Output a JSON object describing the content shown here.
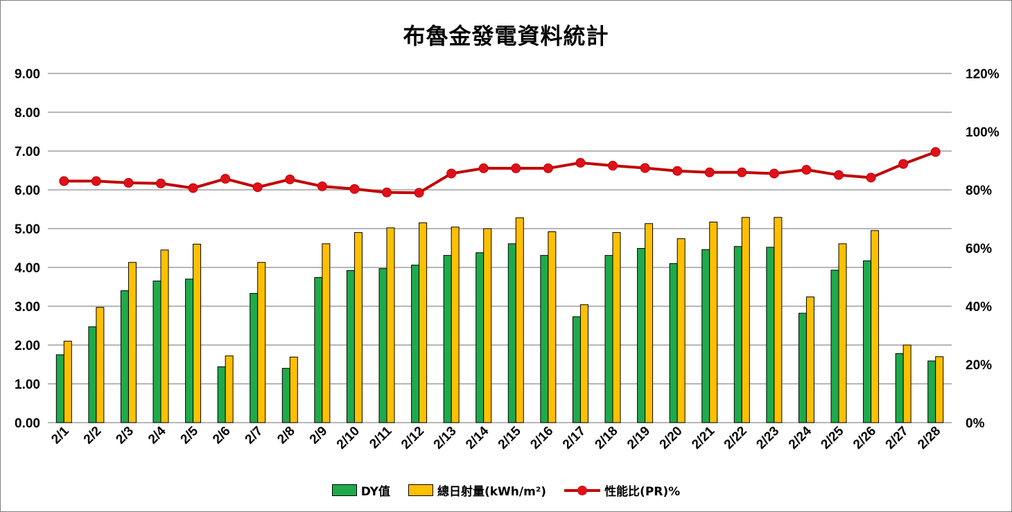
{
  "chart_data": {
    "type": "bar",
    "title": "布魯金發電資料統計",
    "categories": [
      "2/1",
      "2/2",
      "2/3",
      "2/4",
      "2/5",
      "2/6",
      "2/7",
      "2/8",
      "2/9",
      "2/10",
      "2/11",
      "2/12",
      "2/13",
      "2/14",
      "2/15",
      "2/16",
      "2/17",
      "2/18",
      "2/19",
      "2/20",
      "2/21",
      "2/22",
      "2/23",
      "2/24",
      "2/25",
      "2/26",
      "2/27",
      "2/28"
    ],
    "series": [
      {
        "name": "DY值",
        "type": "bar",
        "axis": "left",
        "color": "#1FAA4B",
        "values": [
          1.75,
          2.47,
          3.4,
          3.65,
          3.7,
          1.44,
          3.33,
          1.4,
          3.74,
          3.92,
          3.97,
          4.06,
          4.31,
          4.38,
          4.61,
          4.31,
          2.73,
          4.31,
          4.49,
          4.1,
          4.46,
          4.54,
          4.52,
          2.82,
          3.93,
          4.17,
          1.78,
          1.59
        ]
      },
      {
        "name": "總日射量(kWh/m²)",
        "type": "bar",
        "axis": "left",
        "color": "#FFC000",
        "values": [
          2.1,
          2.97,
          4.13,
          4.45,
          4.6,
          1.72,
          4.13,
          1.69,
          4.61,
          4.9,
          5.02,
          5.15,
          5.04,
          5.0,
          5.28,
          4.92,
          3.04,
          4.9,
          5.13,
          4.74,
          5.17,
          5.29,
          5.29,
          3.24,
          4.61,
          4.95,
          2.0,
          1.7
        ]
      },
      {
        "name": "性能比(PR)%",
        "type": "line",
        "axis": "right",
        "color": "#C00000",
        "values": [
          83,
          83,
          82.4,
          82.2,
          80.6,
          83.8,
          80.9,
          83.6,
          81.2,
          80.3,
          79.1,
          79.0,
          85.6,
          87.4,
          87.4,
          87.4,
          89.3,
          88.3,
          87.5,
          86.5,
          86.0,
          86.0,
          85.6,
          86.9,
          85.1,
          84.2,
          88.9,
          93.0
        ]
      }
    ],
    "y_left": {
      "min": 0,
      "max": 9,
      "ticks": [
        "0.00",
        "1.00",
        "2.00",
        "3.00",
        "4.00",
        "5.00",
        "6.00",
        "7.00",
        "8.00",
        "9.00"
      ]
    },
    "y_right": {
      "min": 0,
      "max": 120,
      "ticks": [
        "0%",
        "20%",
        "40%",
        "60%",
        "80%",
        "100%",
        "120%"
      ]
    },
    "grid": true,
    "legend_position": "bottom"
  }
}
